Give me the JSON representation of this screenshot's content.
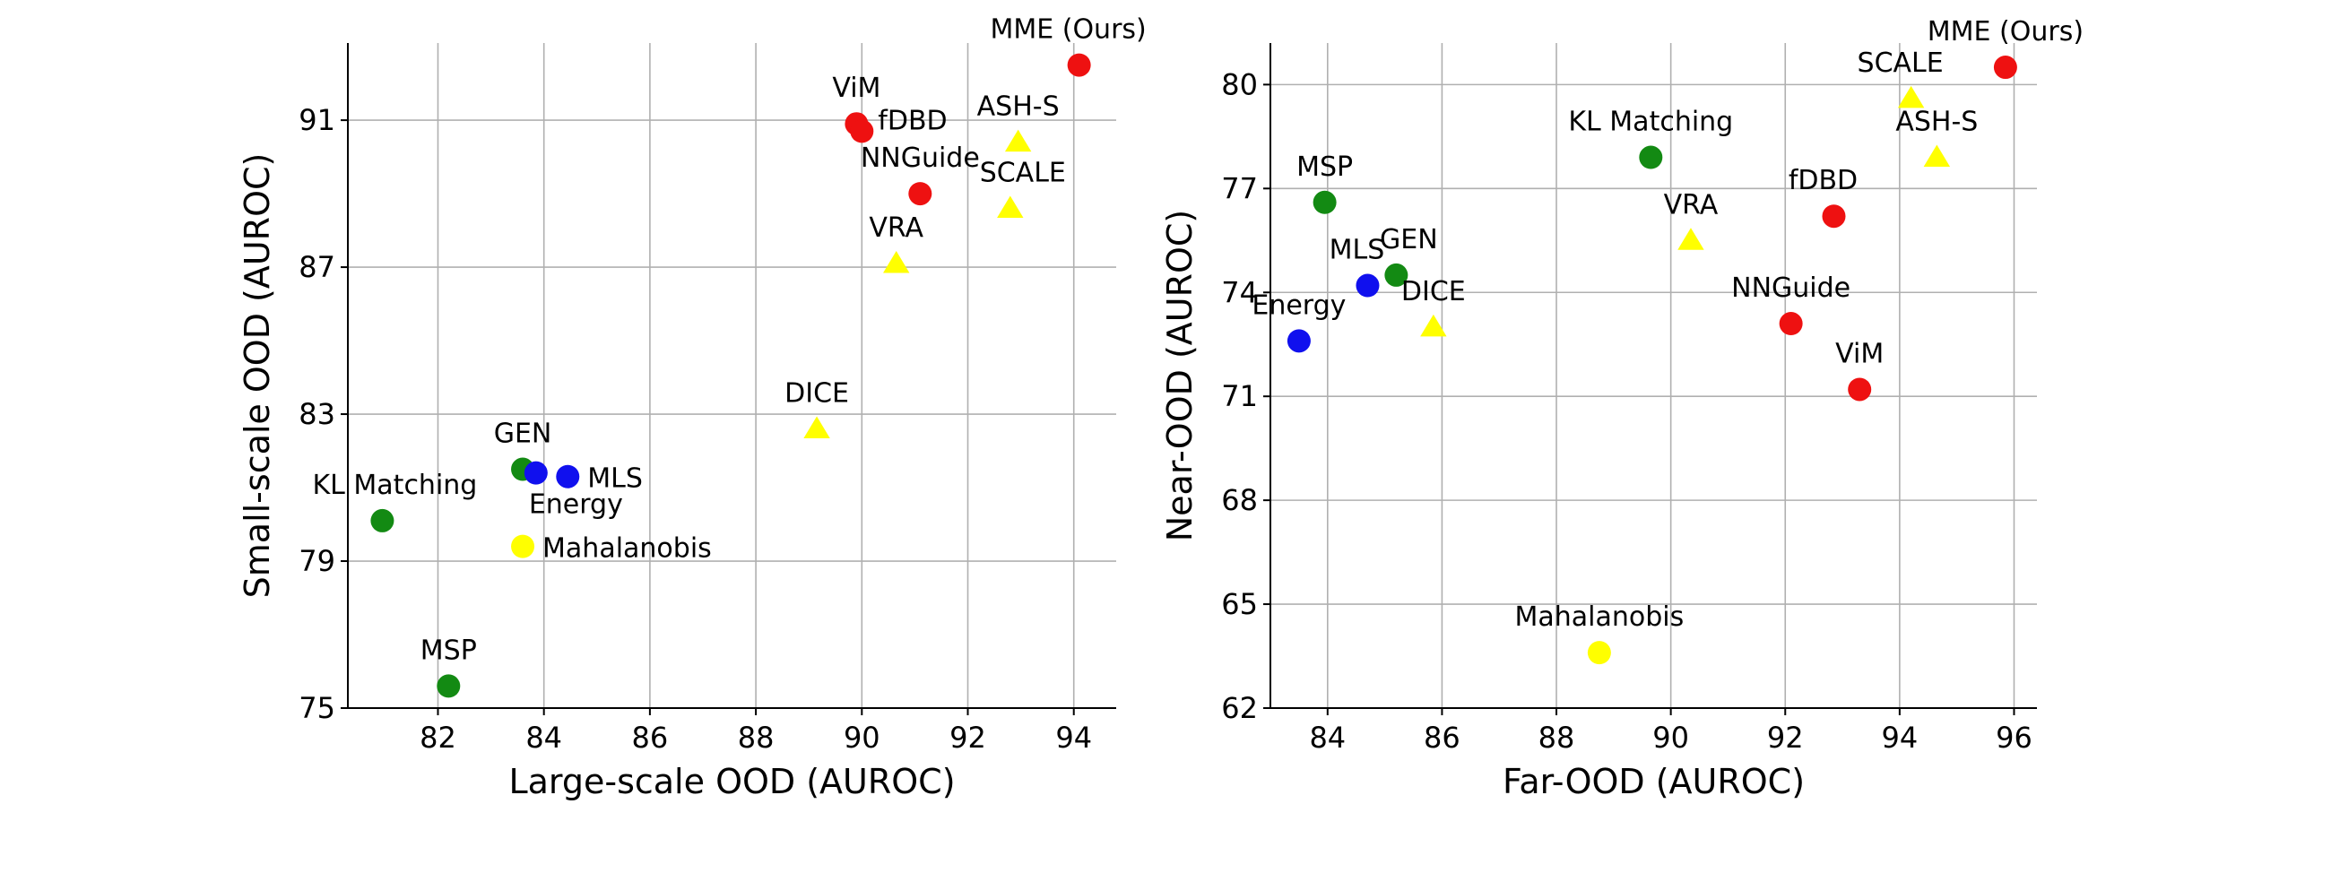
{
  "chart_data": [
    {
      "type": "scatter",
      "xlabel": "Large-scale OOD (AUROC)",
      "ylabel": "Small-scale OOD (AUROC)",
      "xlim": [
        80.3,
        94.8
      ],
      "ylim": [
        75,
        93.1
      ],
      "xticks": [
        82,
        84,
        86,
        88,
        90,
        92,
        94
      ],
      "yticks": [
        75,
        79,
        83,
        87,
        91
      ],
      "grid": true,
      "points": [
        {
          "label": "MME (Ours)",
          "x": 94.1,
          "y": 92.5,
          "marker": "circle",
          "color": "#ee1111",
          "label_pos": "above-left"
        },
        {
          "label": "ViM",
          "x": 89.9,
          "y": 90.9,
          "marker": "circle",
          "color": "#ee1111",
          "label_pos": "above"
        },
        {
          "label": "fDBD",
          "x": 90.0,
          "y": 90.7,
          "marker": "circle",
          "color": "#ee1111",
          "label_pos": "right-up"
        },
        {
          "label": "ASH-S",
          "x": 92.95,
          "y": 90.4,
          "marker": "triangle",
          "color": "#ffff00",
          "label_pos": "above"
        },
        {
          "label": "NNGuide",
          "x": 91.1,
          "y": 89.0,
          "marker": "circle",
          "color": "#ee1111",
          "label_pos": "above"
        },
        {
          "label": "SCALE",
          "x": 92.8,
          "y": 88.6,
          "marker": "triangle",
          "color": "#ffff00",
          "label_pos": "above-right"
        },
        {
          "label": "VRA",
          "x": 90.65,
          "y": 87.1,
          "marker": "triangle",
          "color": "#ffff00",
          "label_pos": "above"
        },
        {
          "label": "DICE",
          "x": 89.15,
          "y": 82.6,
          "marker": "triangle",
          "color": "#ffff00",
          "label_pos": "above"
        },
        {
          "label": "GEN",
          "x": 83.6,
          "y": 81.5,
          "marker": "circle",
          "color": "#138a13",
          "label_pos": "above"
        },
        {
          "label": "Energy",
          "x": 83.85,
          "y": 81.4,
          "marker": "circle",
          "color": "#1010ee",
          "label_pos": "below-right"
        },
        {
          "label": "MLS",
          "x": 84.45,
          "y": 81.3,
          "marker": "circle",
          "color": "#1010ee",
          "label_pos": "right"
        },
        {
          "label": "KL Matching",
          "x": 80.95,
          "y": 80.1,
          "marker": "circle",
          "color": "#138a13",
          "label_pos": "above-right"
        },
        {
          "label": "Mahalanobis",
          "x": 83.6,
          "y": 79.4,
          "marker": "circle",
          "color": "#ffff00",
          "label_pos": "right"
        },
        {
          "label": "MSP",
          "x": 82.2,
          "y": 75.6,
          "marker": "circle",
          "color": "#138a13",
          "label_pos": "above"
        }
      ]
    },
    {
      "type": "scatter",
      "xlabel": "Far-OOD (AUROC)",
      "ylabel": "Near-OOD (AUROC)",
      "xlim": [
        83.0,
        96.4
      ],
      "ylim": [
        62,
        81.2
      ],
      "xticks": [
        84,
        86,
        88,
        90,
        92,
        94,
        96
      ],
      "yticks": [
        62,
        65,
        68,
        71,
        74,
        77,
        80
      ],
      "grid": true,
      "points": [
        {
          "label": "MME (Ours)",
          "x": 95.85,
          "y": 80.5,
          "marker": "circle",
          "color": "#ee1111",
          "label_pos": "above"
        },
        {
          "label": "SCALE",
          "x": 94.2,
          "y": 79.6,
          "marker": "triangle",
          "color": "#ffff00",
          "label_pos": "above-left"
        },
        {
          "label": "ASH-S",
          "x": 94.65,
          "y": 77.9,
          "marker": "triangle",
          "color": "#ffff00",
          "label_pos": "above"
        },
        {
          "label": "KL Matching",
          "x": 89.65,
          "y": 77.9,
          "marker": "circle",
          "color": "#138a13",
          "label_pos": "above"
        },
        {
          "label": "MSP",
          "x": 83.95,
          "y": 76.6,
          "marker": "circle",
          "color": "#138a13",
          "label_pos": "above"
        },
        {
          "label": "fDBD",
          "x": 92.85,
          "y": 76.2,
          "marker": "circle",
          "color": "#ee1111",
          "label_pos": "above-left"
        },
        {
          "label": "VRA",
          "x": 90.35,
          "y": 75.5,
          "marker": "triangle",
          "color": "#ffff00",
          "label_pos": "above"
        },
        {
          "label": "GEN",
          "x": 85.2,
          "y": 74.5,
          "marker": "circle",
          "color": "#138a13",
          "label_pos": "above-right"
        },
        {
          "label": "MLS",
          "x": 84.7,
          "y": 74.2,
          "marker": "circle",
          "color": "#1010ee",
          "label_pos": "above-left"
        },
        {
          "label": "DICE",
          "x": 85.85,
          "y": 73.0,
          "marker": "triangle",
          "color": "#ffff00",
          "label_pos": "above"
        },
        {
          "label": "Energy",
          "x": 83.5,
          "y": 72.6,
          "marker": "circle",
          "color": "#1010ee",
          "label_pos": "above"
        },
        {
          "label": "NNGuide",
          "x": 92.1,
          "y": 73.1,
          "marker": "circle",
          "color": "#ee1111",
          "label_pos": "above"
        },
        {
          "label": "ViM",
          "x": 93.3,
          "y": 71.2,
          "marker": "circle",
          "color": "#ee1111",
          "label_pos": "above"
        },
        {
          "label": "Mahalanobis",
          "x": 88.75,
          "y": 63.6,
          "marker": "circle",
          "color": "#ffff00",
          "label_pos": "above"
        }
      ]
    }
  ]
}
